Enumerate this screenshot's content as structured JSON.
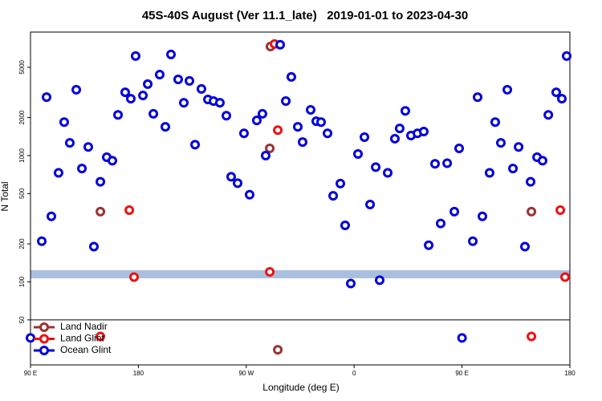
{
  "chart_data": {
    "type": "scatter",
    "title": "45S-40S August (Ver 11.1_late)   2019-01-01 to 2023-04-30",
    "x_label": "Longitude (deg E)",
    "y_label": "N Total",
    "xlim": [
      90,
      540
    ],
    "ylim": [
      22,
      9500
    ],
    "y_scale": "log",
    "xticks": [
      {
        "value": 90,
        "label": "90 E"
      },
      180,
      {
        "value": 270,
        "label": "90 W"
      },
      {
        "value": 360,
        "label": "0"
      },
      {
        "value": 450,
        "label": "90 E"
      },
      {
        "value": 540,
        "label": "180"
      }
    ],
    "yticks": [
      50,
      100,
      200,
      500,
      1000,
      2000,
      5000
    ],
    "grid": false,
    "legend": "lower left",
    "series": [
      {
        "name": "Land Nadir",
        "color": "#993333",
        "x": [
          148.3,
          290.2,
          289.6,
          507.9,
          296.3
        ],
        "values": [
          360,
          7300,
          1140,
          360,
          29
        ]
      },
      {
        "name": "Land Glint",
        "color": "#ee1111",
        "x": [
          172.4,
          176.4,
          293.6,
          296.3,
          289.6,
          532,
          536,
          148.3,
          507.9
        ],
        "values": [
          370,
          109,
          7650,
          1590,
          120,
          370,
          109,
          37,
          37
        ]
      },
      {
        "name": "Ocean Glint",
        "color": "#0000dd",
        "x": [
          99.4,
          103.4,
          107.4,
          113.4,
          118.1,
          122.8,
          128.2,
          132.9,
          138.2,
          142.9,
          148.3,
          153.6,
          158.3,
          163,
          169,
          173.7,
          177.7,
          183.8,
          187.8,
          192.5,
          197.8,
          202.5,
          207.2,
          213.2,
          217.9,
          222.6,
          227.3,
          232.6,
          238,
          242.7,
          248,
          253.4,
          257.4,
          262.8,
          268.1,
          272.8,
          278.8,
          283.5,
          286.2,
          298.3,
          303,
          307.6,
          313,
          317,
          323.7,
          328.4,
          332.4,
          337.8,
          342.5,
          348.5,
          352.5,
          357.2,
          363.2,
          368.6,
          373.3,
          378,
          381.3,
          388,
          394,
          398,
          402.7,
          407.4,
          412.8,
          418.1,
          422.2,
          427.5,
          432.2,
          437.6,
          443.6,
          447.6,
          459,
          463,
          467,
          473,
          477.7,
          482.4,
          487.8,
          492.5,
          497.2,
          502.5,
          507.2,
          512.6,
          517.2,
          522,
          528.6,
          533.3,
          537.3,
          90,
          450
        ],
        "values": [
          210,
          2900,
          330,
          730,
          1840,
          1260,
          3320,
          790,
          1170,
          190,
          620,
          970,
          910,
          2100,
          3170,
          2820,
          6140,
          2990,
          3680,
          2140,
          4380,
          1690,
          6320,
          4010,
          2620,
          3900,
          1220,
          3370,
          2780,
          2700,
          2620,
          2070,
          680,
          605,
          1500,
          490,
          1900,
          2140,
          1000,
          7540,
          2700,
          4200,
          1690,
          1280,
          2300,
          1870,
          1840,
          1500,
          480,
          600,
          280,
          97,
          1030,
          1400,
          410,
          810,
          103,
          730,
          1360,
          1640,
          2260,
          1440,
          1500,
          1550,
          195,
          860,
          290,
          870,
          360,
          1140,
          210,
          2900,
          330,
          730,
          1840,
          1260,
          3320,
          790,
          1170,
          190,
          620,
          970,
          910,
          2100,
          3170,
          2820,
          6140,
          36,
          36
        ]
      }
    ]
  }
}
